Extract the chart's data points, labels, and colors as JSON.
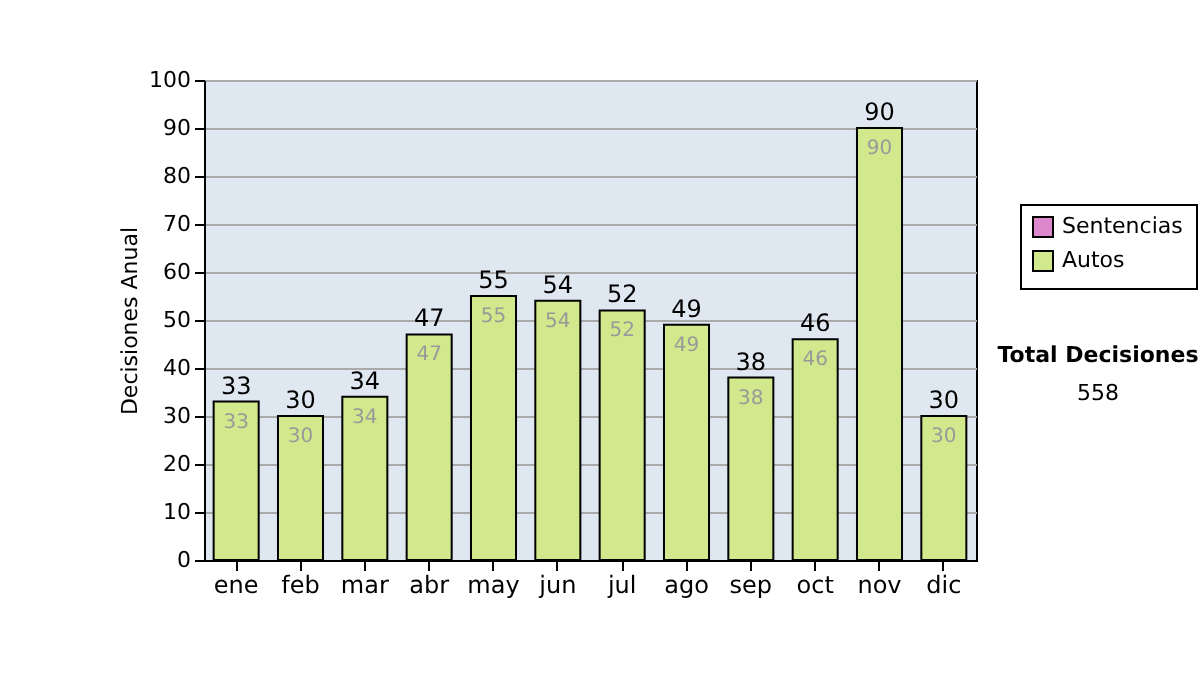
{
  "chart_data": {
    "type": "bar",
    "stacked": true,
    "categories": [
      "ene",
      "feb",
      "mar",
      "abr",
      "may",
      "jun",
      "jul",
      "ago",
      "sep",
      "oct",
      "nov",
      "dic"
    ],
    "series": [
      {
        "name": "Sentencias",
        "color": "#dd88cc",
        "values": [
          null,
          null,
          null,
          null,
          null,
          null,
          null,
          null,
          null,
          null,
          null,
          null
        ]
      },
      {
        "name": "Autos",
        "color": "#d1e88c",
        "values": [
          33,
          30,
          34,
          47,
          55,
          54,
          52,
          49,
          38,
          46,
          90,
          30
        ],
        "value_labels": [
          "33",
          "30",
          "34",
          "47",
          "55",
          "54",
          "52",
          "49",
          "38",
          "46",
          "90",
          "30"
        ]
      }
    ],
    "totals": [
      "33",
      "30",
      "34",
      "47",
      "55",
      "54",
      "52",
      "49",
      "38",
      "46",
      "90",
      "30"
    ],
    "ylabel": "Decisiones Anual",
    "ylim": [
      0,
      100
    ],
    "yticks": [
      0,
      10,
      20,
      30,
      40,
      50,
      60,
      70,
      80,
      90,
      100
    ],
    "grid": "y",
    "legend": "right",
    "annotations": [
      "Total Decisiones",
      "558"
    ]
  }
}
